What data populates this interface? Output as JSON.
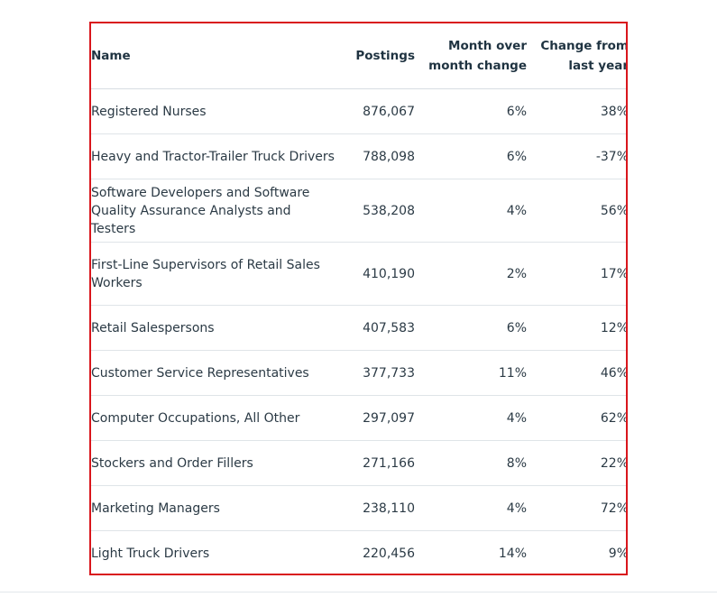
{
  "table": {
    "headers": {
      "name": "Name",
      "postings": "Postings",
      "mom_line1": "Month over",
      "mom_line2": "month change",
      "yoy_line1": "Change from",
      "yoy_line2": "last year"
    },
    "rows": [
      {
        "name": "Registered Nurses",
        "postings": "876,067",
        "mom": "6%",
        "yoy": "38%"
      },
      {
        "name": "Heavy and Tractor-Trailer Truck Drivers",
        "postings": "788,098",
        "mom": "6%",
        "yoy": "-37%"
      },
      {
        "name": "Software Developers and Software Quality Assurance Analysts and Testers",
        "postings": "538,208",
        "mom": "4%",
        "yoy": "56%"
      },
      {
        "name": "First-Line Supervisors of Retail Sales Workers",
        "postings": "410,190",
        "mom": "2%",
        "yoy": "17%"
      },
      {
        "name": "Retail Salespersons",
        "postings": "407,583",
        "mom": "6%",
        "yoy": "12%"
      },
      {
        "name": "Customer Service Representatives",
        "postings": "377,733",
        "mom": "11%",
        "yoy": "46%"
      },
      {
        "name": "Computer Occupations, All Other",
        "postings": "297,097",
        "mom": "4%",
        "yoy": "62%"
      },
      {
        "name": "Stockers and Order Fillers",
        "postings": "271,166",
        "mom": "8%",
        "yoy": "22%"
      },
      {
        "name": "Marketing Managers",
        "postings": "238,110",
        "mom": "4%",
        "yoy": "72%"
      },
      {
        "name": "Light Truck Drivers",
        "postings": "220,456",
        "mom": "14%",
        "yoy": "9%"
      }
    ]
  },
  "colors": {
    "highlight_border": "#d9161c",
    "text": "#2b3a45",
    "divider": "#dfe4e8"
  }
}
